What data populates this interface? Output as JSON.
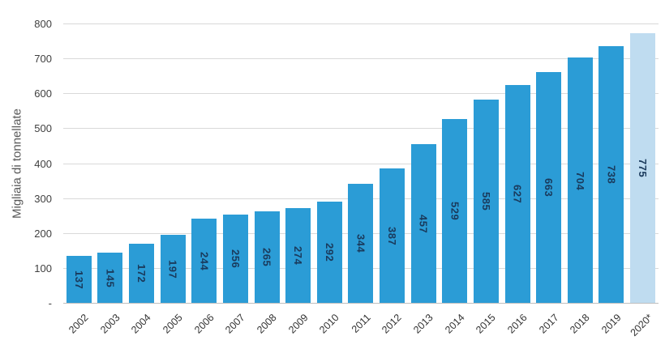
{
  "chart_data": {
    "type": "bar",
    "title": "",
    "xlabel": "",
    "ylabel": "Migliaia di tonnellate",
    "ylim": [
      0,
      800
    ],
    "grid": true,
    "legend": false,
    "categories": [
      "2002",
      "2003",
      "2004",
      "2005",
      "2006",
      "2007",
      "2008",
      "2009",
      "2010",
      "2011",
      "2012",
      "2013",
      "2014",
      "2015",
      "2016",
      "2017",
      "2018",
      "2019",
      "2020*"
    ],
    "values": [
      137,
      145,
      172,
      197,
      244,
      256,
      265,
      274,
      292,
      344,
      387,
      457,
      529,
      585,
      627,
      663,
      704,
      738,
      775
    ],
    "yticks": [
      {
        "value": 0,
        "label": "-"
      },
      {
        "value": 100,
        "label": "100"
      },
      {
        "value": 200,
        "label": "200"
      },
      {
        "value": 300,
        "label": "300"
      },
      {
        "value": 400,
        "label": "400"
      },
      {
        "value": 500,
        "label": "500"
      },
      {
        "value": 600,
        "label": "600"
      },
      {
        "value": 700,
        "label": "700"
      },
      {
        "value": 800,
        "label": "800"
      }
    ],
    "value_labels_inside_bars": true,
    "last_bar_highlighted": true,
    "colors": {
      "bar": "#2b9cd6",
      "forecast_bar": "#bfdcf0",
      "value_label": "#1a3a5c",
      "gridline": "#d9d9d9",
      "axis_line": "#bfbfbf",
      "tick_text": "#404040",
      "axis_title_text": "#595959"
    }
  }
}
